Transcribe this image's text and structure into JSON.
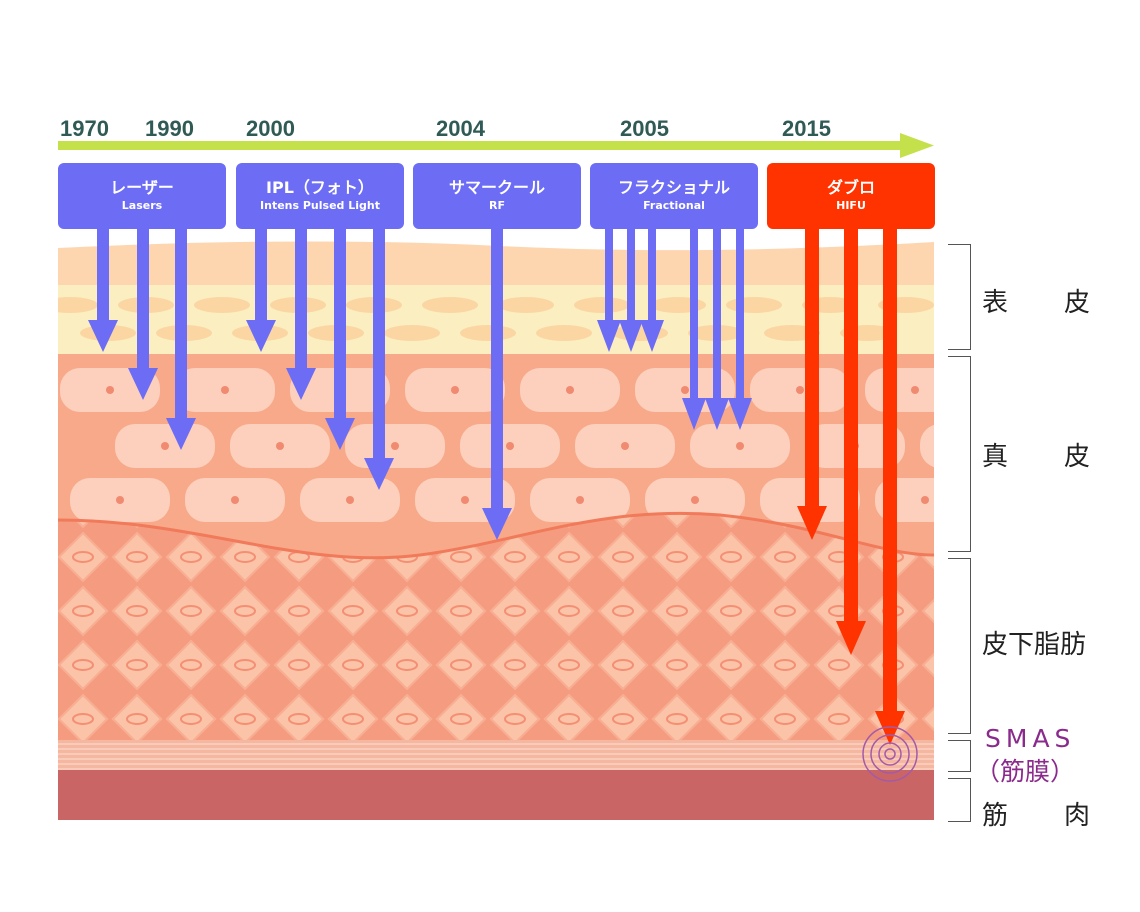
{
  "timeline": {
    "years": [
      "1970",
      "1990",
      "2000",
      "2004",
      "2005",
      "2015"
    ],
    "arrow_color": "#c4e04a"
  },
  "technologies": [
    {
      "jp": "レーザー",
      "en": "Lasers",
      "color": "#6c6cf5"
    },
    {
      "jp": "IPL（フォト）",
      "en": "Intens Pulsed Light",
      "color": "#6c6cf5"
    },
    {
      "jp": "サマークール",
      "en": "RF",
      "color": "#6c6cf5"
    },
    {
      "jp": "フラクショナル",
      "en": "Fractional",
      "color": "#6c6cf5"
    },
    {
      "jp": "ダブロ",
      "en": "HIFU",
      "color": "#ff3300"
    }
  ],
  "layers": {
    "epidermis": {
      "a": "表",
      "b": "皮"
    },
    "dermis": {
      "a": "真",
      "b": "皮"
    },
    "subcutaneous": "皮下脂肪",
    "smas": "SMAS",
    "smas_sub": "（筋膜）",
    "muscle": {
      "a": "筋",
      "b": "肉"
    }
  },
  "colors": {
    "epidermis": "#fbe6b0",
    "dermis": "#f7a98a",
    "fat": "#f6a58a",
    "muscle": "#c96565",
    "smas_text": "#8a2a8c"
  }
}
